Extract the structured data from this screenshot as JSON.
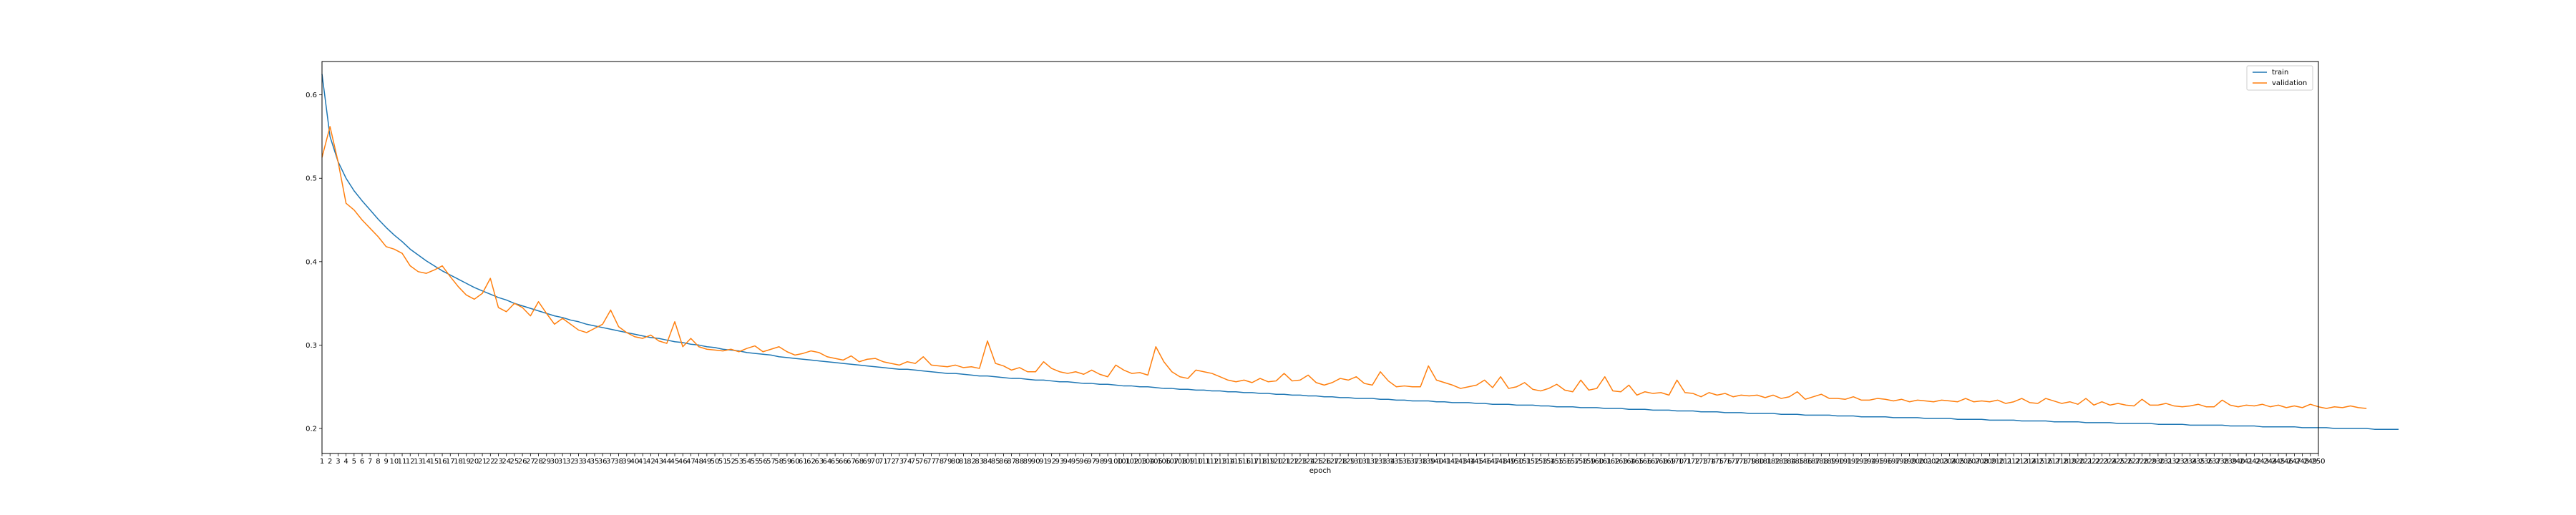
{
  "chart_data": {
    "type": "line",
    "title": "",
    "xlabel": "epoch",
    "ylabel": "",
    "xlim": [
      1,
      250
    ],
    "ylim": [
      0.17,
      0.64
    ],
    "y_ticks": [
      0.2,
      0.3,
      0.4,
      0.5,
      0.6
    ],
    "y_tick_labels": [
      "0.2",
      "0.3",
      "0.4",
      "0.5",
      "0.6"
    ],
    "grid": false,
    "legend_position": "top-right",
    "series": [
      {
        "name": "train",
        "color": "#1f77b4",
        "values": [
          0.625,
          0.55,
          0.52,
          0.5,
          0.485,
          0.473,
          0.462,
          0.451,
          0.441,
          0.432,
          0.424,
          0.415,
          0.408,
          0.401,
          0.395,
          0.389,
          0.384,
          0.379,
          0.374,
          0.369,
          0.365,
          0.361,
          0.357,
          0.354,
          0.35,
          0.347,
          0.344,
          0.341,
          0.338,
          0.335,
          0.333,
          0.33,
          0.328,
          0.325,
          0.323,
          0.321,
          0.319,
          0.317,
          0.315,
          0.313,
          0.311,
          0.309,
          0.308,
          0.306,
          0.304,
          0.303,
          0.301,
          0.3,
          0.298,
          0.297,
          0.295,
          0.294,
          0.293,
          0.291,
          0.29,
          0.289,
          0.288,
          0.286,
          0.285,
          0.284,
          0.283,
          0.282,
          0.281,
          0.28,
          0.279,
          0.278,
          0.277,
          0.276,
          0.275,
          0.274,
          0.273,
          0.272,
          0.271,
          0.271,
          0.27,
          0.269,
          0.268,
          0.267,
          0.266,
          0.266,
          0.265,
          0.264,
          0.263,
          0.263,
          0.262,
          0.261,
          0.26,
          0.26,
          0.259,
          0.258,
          0.258,
          0.257,
          0.256,
          0.256,
          0.255,
          0.254,
          0.254,
          0.253,
          0.253,
          0.252,
          0.251,
          0.251,
          0.25,
          0.25,
          0.249,
          0.248,
          0.248,
          0.247,
          0.247,
          0.246,
          0.246,
          0.245,
          0.245,
          0.244,
          0.244,
          0.243,
          0.243,
          0.242,
          0.242,
          0.241,
          0.241,
          0.24,
          0.24,
          0.239,
          0.239,
          0.238,
          0.238,
          0.237,
          0.237,
          0.236,
          0.236,
          0.236,
          0.235,
          0.235,
          0.234,
          0.234,
          0.233,
          0.233,
          0.233,
          0.232,
          0.232,
          0.231,
          0.231,
          0.231,
          0.23,
          0.23,
          0.229,
          0.229,
          0.229,
          0.228,
          0.228,
          0.228,
          0.227,
          0.227,
          0.226,
          0.226,
          0.226,
          0.225,
          0.225,
          0.225,
          0.224,
          0.224,
          0.224,
          0.223,
          0.223,
          0.223,
          0.222,
          0.222,
          0.222,
          0.221,
          0.221,
          0.221,
          0.22,
          0.22,
          0.22,
          0.219,
          0.219,
          0.219,
          0.218,
          0.218,
          0.218,
          0.218,
          0.217,
          0.217,
          0.217,
          0.216,
          0.216,
          0.216,
          0.216,
          0.215,
          0.215,
          0.215,
          0.214,
          0.214,
          0.214,
          0.214,
          0.213,
          0.213,
          0.213,
          0.213,
          0.212,
          0.212,
          0.212,
          0.212,
          0.211,
          0.211,
          0.211,
          0.211,
          0.21,
          0.21,
          0.21,
          0.21,
          0.209,
          0.209,
          0.209,
          0.209,
          0.208,
          0.208,
          0.208,
          0.208,
          0.207,
          0.207,
          0.207,
          0.207,
          0.206,
          0.206,
          0.206,
          0.206,
          0.206,
          0.205,
          0.205,
          0.205,
          0.205,
          0.204,
          0.204,
          0.204,
          0.204,
          0.204,
          0.203,
          0.203,
          0.203,
          0.203,
          0.202,
          0.202,
          0.202,
          0.202,
          0.202,
          0.201,
          0.201,
          0.201,
          0.201,
          0.2,
          0.2,
          0.2,
          0.2,
          0.2,
          0.199,
          0.199,
          0.199,
          0.199
        ]
      },
      {
        "name": "validation",
        "color": "#ff7f0e",
        "values": [
          0.525,
          0.562,
          0.52,
          0.47,
          0.462,
          0.45,
          0.44,
          0.43,
          0.418,
          0.415,
          0.41,
          0.395,
          0.388,
          0.386,
          0.39,
          0.395,
          0.382,
          0.37,
          0.36,
          0.355,
          0.362,
          0.38,
          0.345,
          0.34,
          0.35,
          0.345,
          0.335,
          0.352,
          0.338,
          0.325,
          0.332,
          0.325,
          0.318,
          0.315,
          0.32,
          0.325,
          0.342,
          0.322,
          0.315,
          0.31,
          0.308,
          0.312,
          0.305,
          0.302,
          0.328,
          0.298,
          0.308,
          0.298,
          0.295,
          0.294,
          0.293,
          0.295,
          0.292,
          0.296,
          0.299,
          0.292,
          0.295,
          0.298,
          0.292,
          0.288,
          0.29,
          0.293,
          0.291,
          0.286,
          0.284,
          0.282,
          0.287,
          0.28,
          0.283,
          0.284,
          0.28,
          0.278,
          0.276,
          0.28,
          0.278,
          0.286,
          0.276,
          0.275,
          0.274,
          0.276,
          0.273,
          0.274,
          0.272,
          0.305,
          0.278,
          0.275,
          0.27,
          0.273,
          0.268,
          0.268,
          0.28,
          0.272,
          0.268,
          0.266,
          0.268,
          0.265,
          0.27,
          0.265,
          0.262,
          0.276,
          0.27,
          0.266,
          0.267,
          0.264,
          0.298,
          0.28,
          0.268,
          0.262,
          0.26,
          0.27,
          0.268,
          0.266,
          0.262,
          0.258,
          0.256,
          0.258,
          0.255,
          0.26,
          0.256,
          0.257,
          0.266,
          0.257,
          0.258,
          0.264,
          0.255,
          0.252,
          0.255,
          0.26,
          0.258,
          0.262,
          0.254,
          0.252,
          0.268,
          0.257,
          0.25,
          0.251,
          0.25,
          0.25,
          0.275,
          0.258,
          0.255,
          0.252,
          0.248,
          0.25,
          0.252,
          0.258,
          0.249,
          0.262,
          0.248,
          0.25,
          0.255,
          0.247,
          0.245,
          0.248,
          0.253,
          0.246,
          0.244,
          0.258,
          0.246,
          0.248,
          0.262,
          0.245,
          0.244,
          0.252,
          0.24,
          0.244,
          0.242,
          0.243,
          0.24,
          0.258,
          0.243,
          0.242,
          0.238,
          0.243,
          0.24,
          0.242,
          0.238,
          0.24,
          0.239,
          0.24,
          0.237,
          0.24,
          0.236,
          0.238,
          0.244,
          0.235,
          0.238,
          0.241,
          0.236,
          0.236,
          0.235,
          0.238,
          0.234,
          0.234,
          0.236,
          0.235,
          0.233,
          0.235,
          0.232,
          0.234,
          0.233,
          0.232,
          0.234,
          0.233,
          0.232,
          0.236,
          0.232,
          0.233,
          0.232,
          0.234,
          0.23,
          0.232,
          0.236,
          0.231,
          0.23,
          0.236,
          0.233,
          0.23,
          0.232,
          0.229,
          0.236,
          0.228,
          0.232,
          0.228,
          0.23,
          0.228,
          0.227,
          0.235,
          0.228,
          0.228,
          0.23,
          0.227,
          0.226,
          0.227,
          0.229,
          0.226,
          0.226,
          0.234,
          0.228,
          0.226,
          0.228,
          0.227,
          0.229,
          0.226,
          0.228,
          0.225,
          0.227,
          0.225,
          0.229,
          0.226,
          0.224,
          0.226,
          0.225,
          0.227,
          0.225,
          0.224
        ]
      }
    ]
  }
}
